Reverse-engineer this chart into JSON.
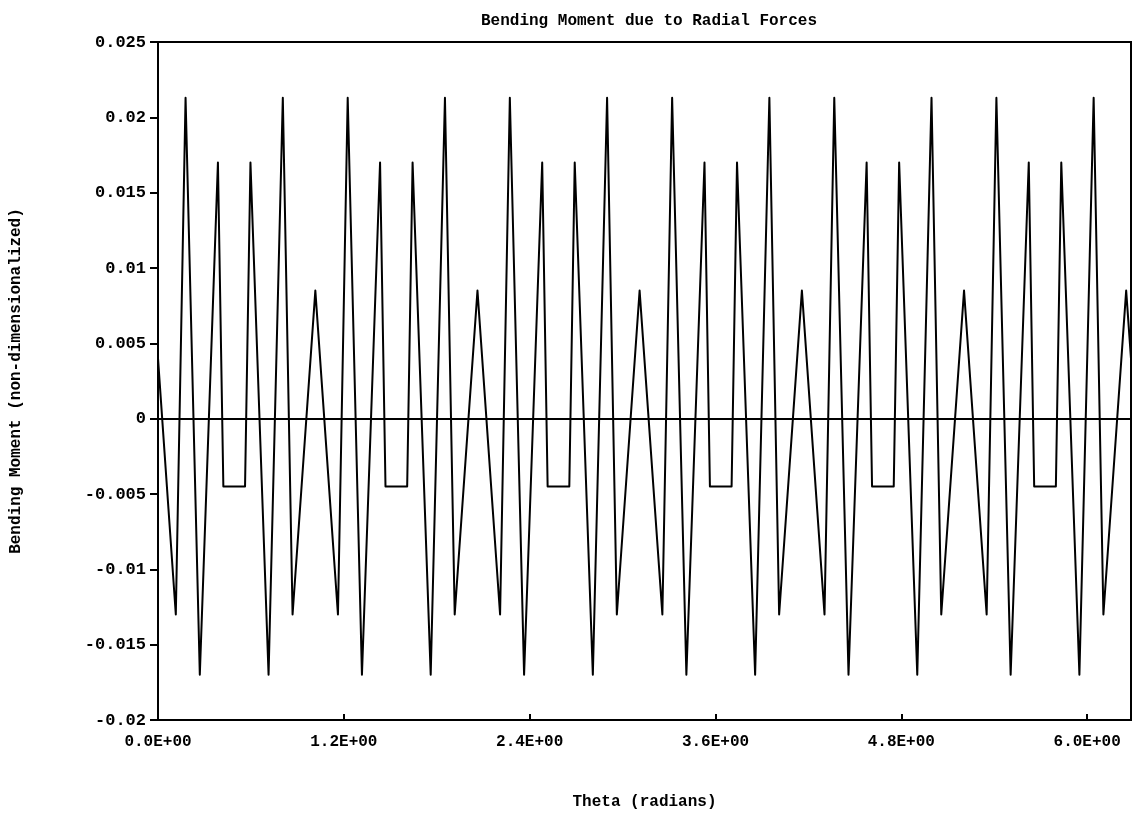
{
  "chart_data": {
    "type": "line",
    "title": "Bending Moment due to Radial Forces",
    "xlabel": "Theta (radians)",
    "ylabel": "Bending Moment (non-dimensionalized)",
    "x": [
      0,
      0.115,
      0.178,
      0.27,
      0.387,
      0.422,
      0.562,
      0.597,
      0.714,
      0.806,
      0.869,
      1.016,
      1.162,
      1.225,
      1.317,
      1.434,
      1.469,
      1.609,
      1.644,
      1.761,
      1.853,
      1.916,
      2.063,
      2.209,
      2.272,
      2.364,
      2.481,
      2.516,
      2.656,
      2.691,
      2.808,
      2.9,
      2.963,
      3.11,
      3.257,
      3.32,
      3.412,
      3.529,
      3.564,
      3.704,
      3.739,
      3.856,
      3.948,
      4.011,
      4.158,
      4.304,
      4.367,
      4.459,
      4.576,
      4.611,
      4.751,
      4.786,
      4.903,
      4.995,
      5.058,
      5.205,
      5.351,
      5.414,
      5.506,
      5.623,
      5.658,
      5.798,
      5.833,
      5.95,
      6.042,
      6.105,
      6.252,
      6.283
    ],
    "series": [
      {
        "color": "#000000",
        "values": [
          0.004,
          -0.013,
          0.0213,
          -0.017,
          0.017,
          -0.0045,
          -0.0045,
          0.017,
          -0.017,
          0.0213,
          -0.013,
          0.0085,
          -0.013,
          0.0213,
          -0.017,
          0.017,
          -0.0045,
          -0.0045,
          0.017,
          -0.017,
          0.0213,
          -0.013,
          0.0085,
          -0.013,
          0.0213,
          -0.017,
          0.017,
          -0.0045,
          -0.0045,
          0.017,
          -0.017,
          0.0213,
          -0.013,
          0.0085,
          -0.013,
          0.0213,
          -0.017,
          0.017,
          -0.0045,
          -0.0045,
          0.017,
          -0.017,
          0.0213,
          -0.013,
          0.0085,
          -0.013,
          0.0213,
          -0.017,
          0.017,
          -0.0045,
          -0.0045,
          0.017,
          -0.017,
          0.0213,
          -0.013,
          0.0085,
          -0.013,
          0.0213,
          -0.017,
          0.017,
          -0.0045,
          -0.0045,
          0.017,
          -0.017,
          0.0213,
          -0.013,
          0.0085,
          0.004
        ]
      }
    ],
    "xlim": [
      0,
      6.2832
    ],
    "xticks": [
      {
        "value": 0,
        "label": "0.0E+00"
      },
      {
        "value": 1.2,
        "label": "1.2E+00"
      },
      {
        "value": 2.4,
        "label": "2.4E+00"
      },
      {
        "value": 3.6,
        "label": "3.6E+00"
      },
      {
        "value": 4.8,
        "label": "4.8E+00"
      },
      {
        "value": 6.0,
        "label": "6.0E+00"
      }
    ],
    "ylim": [
      -0.02,
      0.025
    ],
    "yticks": [
      -0.02,
      -0.015,
      -0.01,
      -0.005,
      0,
      0.005,
      0.01,
      0.015,
      0.02,
      0.025
    ],
    "ref_lines": [
      {
        "axis": "y",
        "value": 0,
        "color": "#000000"
      }
    ],
    "grid": false,
    "marker": "none",
    "line_style": "solid"
  }
}
